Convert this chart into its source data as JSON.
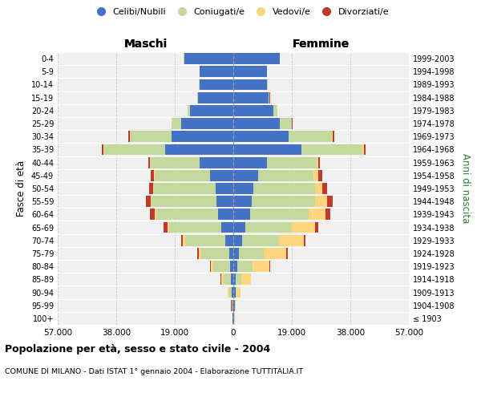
{
  "age_groups": [
    "100+",
    "95-99",
    "90-94",
    "85-89",
    "80-84",
    "75-79",
    "70-74",
    "65-69",
    "60-64",
    "55-59",
    "50-54",
    "45-49",
    "40-44",
    "35-39",
    "30-34",
    "25-29",
    "20-24",
    "15-19",
    "10-14",
    "5-9",
    "0-4"
  ],
  "birth_years": [
    "≤ 1903",
    "1904-1908",
    "1909-1913",
    "1914-1918",
    "1919-1923",
    "1924-1928",
    "1929-1933",
    "1934-1938",
    "1939-1943",
    "1944-1948",
    "1949-1953",
    "1954-1958",
    "1959-1963",
    "1964-1968",
    "1969-1973",
    "1974-1978",
    "1979-1983",
    "1984-1988",
    "1989-1993",
    "1994-1998",
    "1999-2003"
  ],
  "males": {
    "celibi": [
      200,
      350,
      500,
      700,
      1000,
      1400,
      2500,
      3800,
      5000,
      5500,
      5800,
      7500,
      11000,
      22000,
      20000,
      17000,
      14000,
      11500,
      11000,
      11000,
      16000
    ],
    "coniugati": [
      100,
      200,
      800,
      2500,
      5500,
      9000,
      13000,
      17000,
      20000,
      21000,
      20000,
      18000,
      16000,
      20000,
      13500,
      3000,
      800,
      200,
      100,
      50,
      30
    ],
    "vedovi": [
      20,
      80,
      400,
      700,
      900,
      900,
      800,
      600,
      500,
      400,
      300,
      200,
      150,
      100,
      80,
      50,
      30,
      10,
      5,
      5,
      5
    ],
    "divorziati": [
      10,
      30,
      80,
      150,
      250,
      500,
      700,
      1200,
      1500,
      1600,
      1200,
      1200,
      500,
      600,
      400,
      100,
      50,
      20,
      10,
      5,
      5
    ]
  },
  "females": {
    "nubili": [
      300,
      500,
      700,
      900,
      1200,
      1800,
      2800,
      4000,
      5500,
      6000,
      6500,
      8000,
      11000,
      22000,
      18000,
      15000,
      13000,
      11500,
      11000,
      11000,
      15000
    ],
    "coniugate": [
      50,
      100,
      400,
      1800,
      5000,
      8000,
      12000,
      15000,
      19000,
      20500,
      20000,
      18000,
      16000,
      20000,
      14000,
      4000,
      1200,
      300,
      100,
      50,
      30
    ],
    "vedove": [
      50,
      200,
      1200,
      3000,
      5500,
      7500,
      8000,
      7500,
      5500,
      4000,
      2500,
      1500,
      600,
      400,
      200,
      80,
      40,
      15,
      10,
      5,
      5
    ],
    "divorziate": [
      10,
      30,
      80,
      150,
      200,
      400,
      600,
      1000,
      1600,
      1800,
      1400,
      1500,
      600,
      600,
      500,
      150,
      80,
      30,
      10,
      5,
      5
    ]
  },
  "colors": {
    "celibi": "#4472C4",
    "coniugati": "#C5D89D",
    "vedovi": "#FFD580",
    "divorziati": "#C0392B"
  },
  "xlim": 57000,
  "xlabel_left": "Maschi",
  "xlabel_right": "Femmine",
  "ylabel_left": "Fasce di età",
  "ylabel_right": "Anni di nascita",
  "title": "Popolazione per età, sesso e stato civile - 2004",
  "subtitle": "COMUNE DI MILANO - Dati ISTAT 1° gennaio 2004 - Elaborazione TUTTITALIA.IT",
  "legend_labels": [
    "Celibi/Nubili",
    "Coniugati/e",
    "Vedovi/e",
    "Divorziati/e"
  ],
  "background_color": "#FFFFFF",
  "plot_bg_color": "#F0F0F0",
  "grid_color": "#CCCCCC"
}
